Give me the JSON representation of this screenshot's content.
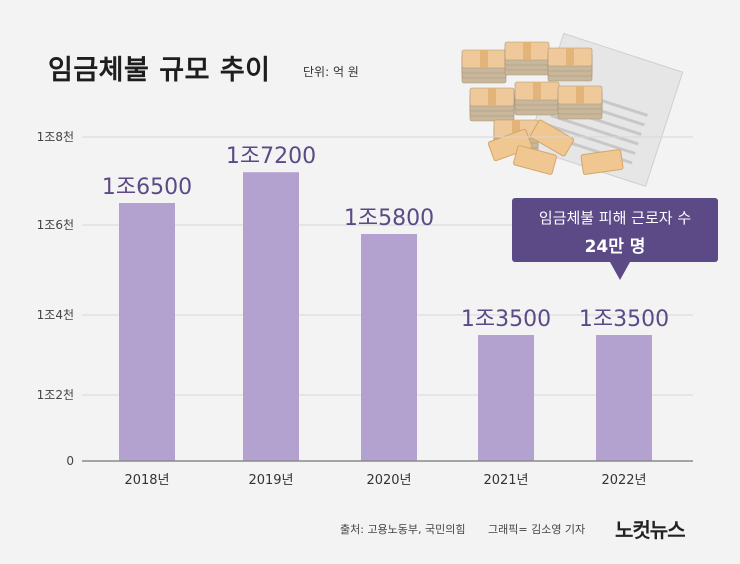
{
  "header": {
    "title": "임금체불 규모 추이",
    "unit": "단위: 억 원"
  },
  "callout": {
    "line1": "임금체불 피해 근로자 수",
    "line2": "24만 명"
  },
  "footer": {
    "source": "출처: 고용노동부, 국민의힘",
    "credit": "그래픽= 김소영 기자",
    "logo": "노컷뉴스"
  },
  "colors": {
    "bar": "#b3a2cf",
    "label": "#5b4a86",
    "callout": "#5b4a86",
    "background": "#f3f3f3",
    "grid": "#d7d7d7"
  },
  "illustration": "money-bundles-and-wage-document-icon",
  "chart_data": {
    "type": "bar",
    "title": "임금체불 규모 추이",
    "xlabel": "",
    "ylabel": "",
    "categories": [
      "2018년",
      "2019년",
      "2020년",
      "2021년",
      "2022년"
    ],
    "values": [
      16500,
      17200,
      15800,
      13500,
      13500
    ],
    "data_labels": [
      "1조6500",
      "1조7200",
      "1조5800",
      "1조3500",
      "1조3500"
    ],
    "yticks": [
      0,
      12000,
      14000,
      16000,
      18000
    ],
    "ytick_labels": [
      "0",
      "1조2천",
      "1조4천",
      "1조6천",
      "1조8천"
    ],
    "grid": true,
    "legend": "none"
  }
}
